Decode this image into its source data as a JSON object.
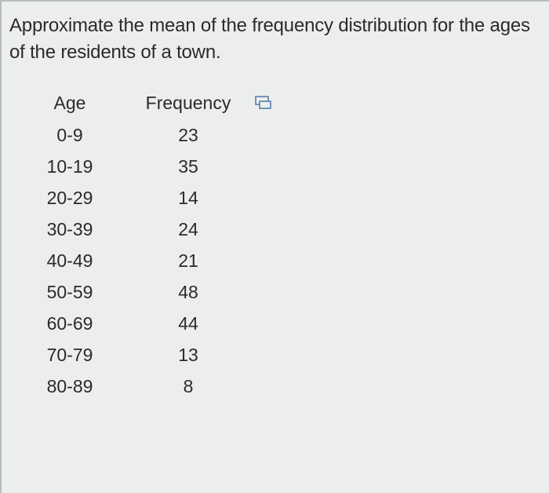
{
  "question": "Approximate the mean of the frequency distribution for the ages of the residents of a town.",
  "table": {
    "headers": [
      "Age",
      "Frequency"
    ],
    "rows": [
      [
        "0-9",
        23
      ],
      [
        "10-19",
        35
      ],
      [
        "20-29",
        14
      ],
      [
        "30-39",
        24
      ],
      [
        "40-49",
        21
      ],
      [
        "50-59",
        48
      ],
      [
        "60-69",
        44
      ],
      [
        "70-79",
        13
      ],
      [
        "80-89",
        8
      ]
    ]
  }
}
